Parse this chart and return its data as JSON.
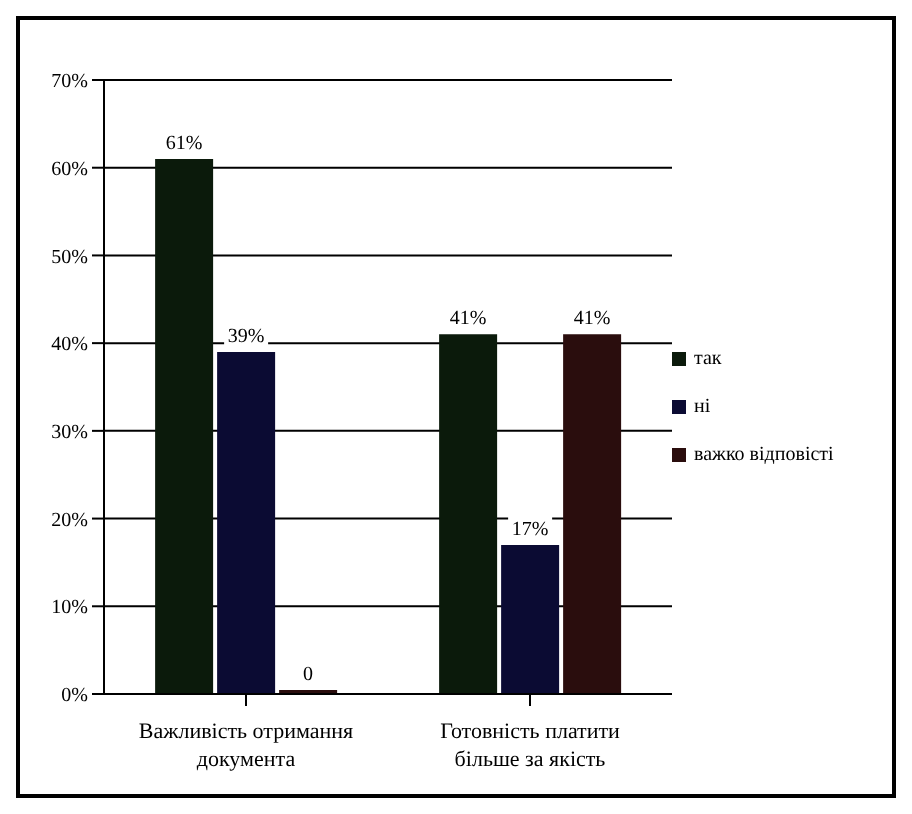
{
  "chart_data": {
    "type": "bar",
    "categories": [
      "Важливість отримання документа",
      "Готовність платити більше за якість"
    ],
    "series": [
      {
        "name": "так",
        "color": "#0b1a0b",
        "values": [
          61,
          41
        ],
        "value_labels": [
          "61%",
          "41%"
        ]
      },
      {
        "name": "ні",
        "color": "#0b0b33",
        "values": [
          39,
          17
        ],
        "value_labels": [
          "39%",
          "17%"
        ]
      },
      {
        "name": "важко відповісті",
        "color": "#2a0d0d",
        "values": [
          0,
          41
        ],
        "value_labels": [
          "0",
          "41%"
        ]
      }
    ],
    "ylim": [
      0,
      70
    ],
    "yticks": [
      {
        "value": 0,
        "label": "0%"
      },
      {
        "value": 10,
        "label": "10%"
      },
      {
        "value": 20,
        "label": "20%"
      },
      {
        "value": 30,
        "label": "30%"
      },
      {
        "value": 40,
        "label": "40%"
      },
      {
        "value": 50,
        "label": "50%"
      },
      {
        "value": 60,
        "label": "60%"
      },
      {
        "value": 70,
        "label": "70%"
      }
    ],
    "grid": "y",
    "legend": "right"
  }
}
